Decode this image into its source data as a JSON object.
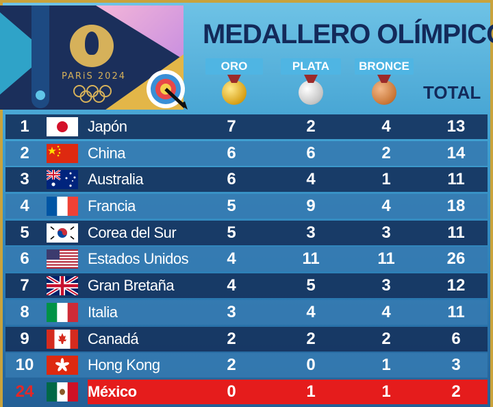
{
  "logo": {
    "text": "PARiS 2024"
  },
  "title": "MEDALLERO OLÍMPICO",
  "headers": {
    "gold": "ORO",
    "silver": "PLATA",
    "bronze": "BRONCE",
    "total": "TOTAL"
  },
  "colors": {
    "highlight": "#e51c1c",
    "title": "#132a5a",
    "rank_highlight": "#e52727"
  },
  "rows": [
    {
      "rank": "1",
      "country": "Japón",
      "flag": "japan-flag",
      "gold": "7",
      "silver": "2",
      "bronze": "4",
      "total": "13"
    },
    {
      "rank": "2",
      "country": "China",
      "flag": "china-flag",
      "gold": "6",
      "silver": "6",
      "bronze": "2",
      "total": "14"
    },
    {
      "rank": "3",
      "country": "Australia",
      "flag": "australia-flag",
      "gold": "6",
      "silver": "4",
      "bronze": "1",
      "total": "11"
    },
    {
      "rank": "4",
      "country": "Francia",
      "flag": "france-flag",
      "gold": "5",
      "silver": "9",
      "bronze": "4",
      "total": "18"
    },
    {
      "rank": "5",
      "country": "Corea del Sur",
      "flag": "south-korea-flag",
      "gold": "5",
      "silver": "3",
      "bronze": "3",
      "total": "11"
    },
    {
      "rank": "6",
      "country": "Estados Unidos",
      "flag": "usa-flag",
      "gold": "4",
      "silver": "11",
      "bronze": "11",
      "total": "26"
    },
    {
      "rank": "7",
      "country": "Gran Bretaña",
      "flag": "uk-flag",
      "gold": "4",
      "silver": "5",
      "bronze": "3",
      "total": "12"
    },
    {
      "rank": "8",
      "country": "Italia",
      "flag": "italy-flag",
      "gold": "3",
      "silver": "4",
      "bronze": "4",
      "total": "11"
    },
    {
      "rank": "9",
      "country": "Canadá",
      "flag": "canada-flag",
      "gold": "2",
      "silver": "2",
      "bronze": "2",
      "total": "6"
    },
    {
      "rank": "10",
      "country": "Hong Kong",
      "flag": "hong-kong-flag",
      "gold": "2",
      "silver": "0",
      "bronze": "1",
      "total": "3"
    },
    {
      "rank": "24",
      "country": "México",
      "flag": "mexico-flag",
      "gold": "0",
      "silver": "1",
      "bronze": "1",
      "total": "2"
    }
  ]
}
